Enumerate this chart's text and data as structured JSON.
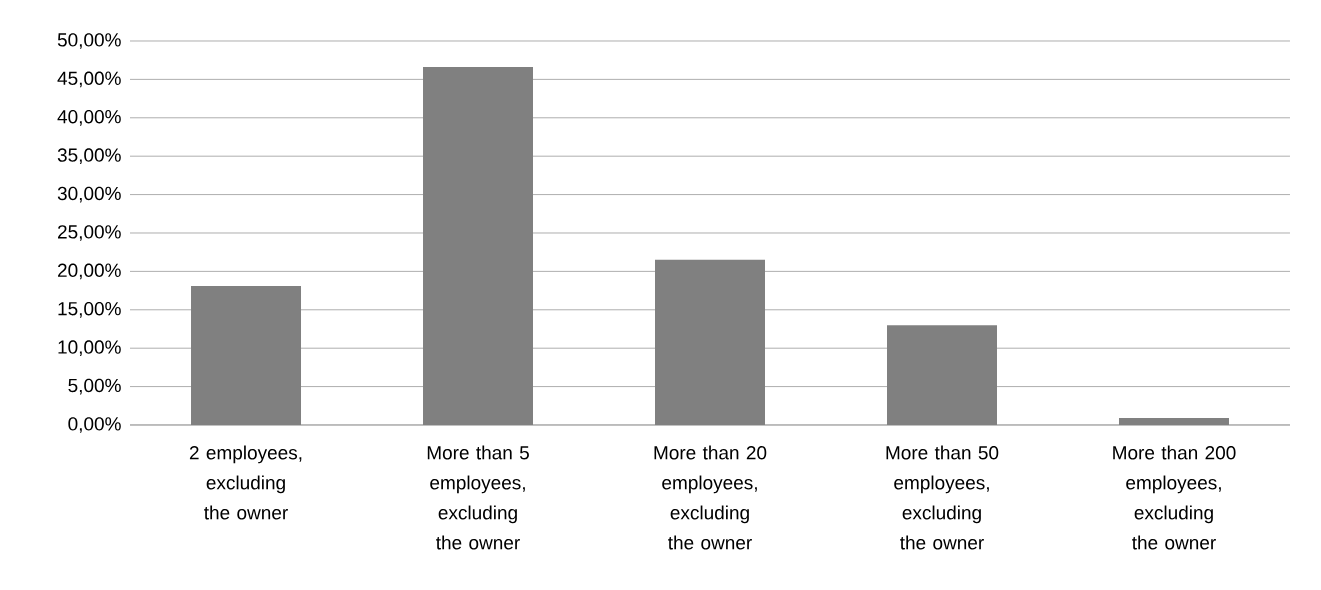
{
  "chart_data": {
    "type": "bar",
    "categories": [
      "2 employees, excluding the owner",
      "More than 5 employees, excluding the owner",
      "More than 20 employees, excluding the owner",
      "More than 50 employees, excluding the owner",
      "More than 200 employees, excluding the owner"
    ],
    "values": [
      18.1,
      46.6,
      21.5,
      13.0,
      0.9
    ],
    "color": "#808080",
    "ylim": [
      0,
      50
    ],
    "yticks": [
      {
        "value": 0,
        "label": "0,00%"
      },
      {
        "value": 5,
        "label": "5,00%"
      },
      {
        "value": 10,
        "label": "10,00%"
      },
      {
        "value": 15,
        "label": "15,00%"
      },
      {
        "value": 20,
        "label": "20,00%"
      },
      {
        "value": 25,
        "label": "25,00%"
      },
      {
        "value": 30,
        "label": "30,00%"
      },
      {
        "value": 35,
        "label": "35,00%"
      },
      {
        "value": 40,
        "label": "40,00%"
      },
      {
        "value": 45,
        "label": "45,00%"
      },
      {
        "value": 50,
        "label": "50,00%"
      }
    ],
    "grid": "y"
  }
}
